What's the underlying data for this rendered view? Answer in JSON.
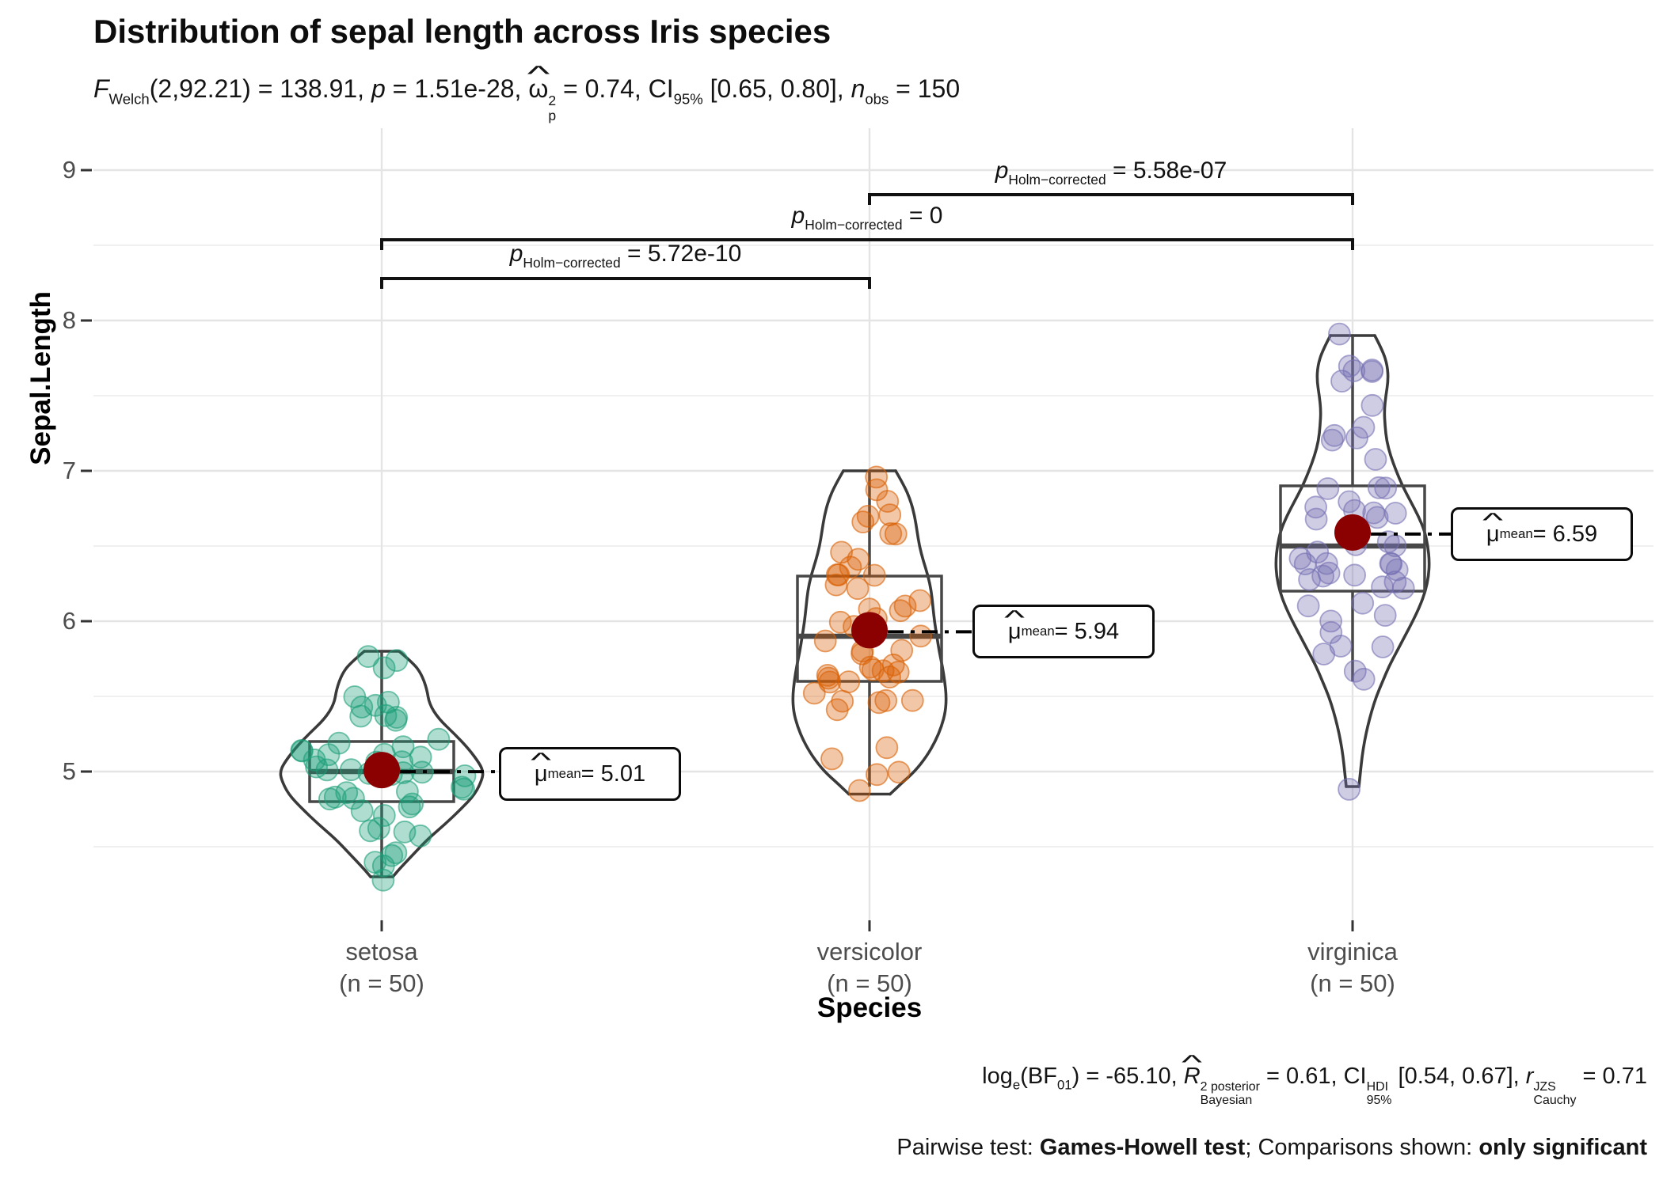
{
  "title": "Distribution of sepal length across Iris species",
  "subtitle": {
    "segments": [
      {
        "t": "F",
        "m": "i"
      },
      {
        "t": "Welch",
        "m": "sub"
      },
      {
        "t": "(2,92.21) = 138.91, ",
        "m": "n"
      },
      {
        "t": "p",
        "m": "i"
      },
      {
        "t": " = 1.51e-28, ",
        "m": "n"
      },
      {
        "t": "ω",
        "m": "hat"
      },
      {
        "t": "2|p",
        "m": "stack"
      },
      {
        "t": " = 0.74, CI",
        "m": "n"
      },
      {
        "t": "95%",
        "m": "sub"
      },
      {
        "t": " [0.65, 0.80], ",
        "m": "n"
      },
      {
        "t": "n",
        "m": "i"
      },
      {
        "t": "obs",
        "m": "sub"
      },
      {
        "t": " = 150",
        "m": "n"
      }
    ]
  },
  "caption_bayes": {
    "segments": [
      {
        "t": "log",
        "m": "n"
      },
      {
        "t": "e",
        "m": "sub"
      },
      {
        "t": "(BF",
        "m": "n"
      },
      {
        "t": "01",
        "m": "sub"
      },
      {
        "t": ") = -65.10, ",
        "m": "n"
      },
      {
        "t": "R",
        "m": "ihat"
      },
      {
        "t": "2 posterior|Bayesian",
        "m": "stack"
      },
      {
        "t": " = 0.61, CI",
        "m": "n"
      },
      {
        "t": "HDI|95%",
        "m": "stack"
      },
      {
        "t": " [0.54, 0.67], ",
        "m": "n"
      },
      {
        "t": "r",
        "m": "i"
      },
      {
        "t": "JZS|Cauchy",
        "m": "stack"
      },
      {
        "t": " = 0.71",
        "m": "n"
      }
    ]
  },
  "caption_pairwise": {
    "segments": [
      {
        "t": "Pairwise test: ",
        "m": "n"
      },
      {
        "t": "Games-Howell test",
        "m": "b"
      },
      {
        "t": "; Comparisons shown: ",
        "m": "n"
      },
      {
        "t": "only significant",
        "m": "b"
      }
    ]
  },
  "y_axis": {
    "title": "Sepal.Length"
  },
  "x_axis": {
    "title": "Species",
    "categories": [
      {
        "name": "setosa",
        "n_label": "(n = 50)"
      },
      {
        "name": "versicolor",
        "n_label": "(n = 50)"
      },
      {
        "name": "virginica",
        "n_label": "(n = 50)"
      }
    ]
  },
  "comparisons": [
    {
      "group1": "setosa",
      "group2": "versicolor",
      "p_value": "5.72e-10",
      "label_segments": [
        {
          "t": "p",
          "m": "i"
        },
        {
          "t": "Holm−corrected",
          "m": "sub"
        },
        {
          "t": " = 5.72e-10",
          "m": "n"
        }
      ]
    },
    {
      "group1": "setosa",
      "group2": "virginica",
      "p_value": "0",
      "label_segments": [
        {
          "t": "p",
          "m": "i"
        },
        {
          "t": "Holm−corrected",
          "m": "sub"
        },
        {
          "t": " = 0",
          "m": "n"
        }
      ]
    },
    {
      "group1": "versicolor",
      "group2": "virginica",
      "p_value": "5.58e-07",
      "label_segments": [
        {
          "t": "p",
          "m": "i"
        },
        {
          "t": "Holm−corrected",
          "m": "sub"
        },
        {
          "t": " = 5.58e-07",
          "m": "n"
        }
      ]
    }
  ],
  "chart_data": {
    "type": "violin",
    "title": "Distribution of sepal length across Iris species",
    "xlabel": "Species",
    "ylabel": "Sepal.Length",
    "yticks": [
      "9",
      "8",
      "7",
      "6",
      "5"
    ],
    "ytick_values": [
      9,
      8,
      7,
      6,
      5
    ],
    "minor_tick_values": [
      8.5,
      7.5,
      6.5,
      5.5,
      4.5
    ],
    "mean_color": "#8B0000",
    "grid": true,
    "anova_stats": {
      "F_Welch": "138.91",
      "df": "2,92.21",
      "p": "1.51e-28",
      "omega2_p": "0.74",
      "CI95": "[0.65, 0.80]",
      "n_obs": "150"
    },
    "bayes_stats": {
      "loge_BF01": "-65.10",
      "R2_Bayesian_posterior": "0.61",
      "CI95_HDI": "[0.54, 0.67]",
      "r_Cauchy_JZS": "0.71"
    },
    "groups": [
      {
        "name": "setosa",
        "n": 50,
        "color": "#1B9E77",
        "mean": 5.01,
        "mean_label_segments": [
          {
            "t": "μ",
            "m": "hat"
          },
          {
            "t": "mean",
            "m": "sub"
          },
          {
            "t": " = 5.01",
            "m": "n"
          }
        ],
        "box": {
          "q1": 4.8,
          "median": 5.0,
          "q3": 5.2,
          "whisker_low": 4.3,
          "whisker_high": 5.8
        },
        "values": [
          5.1,
          4.9,
          4.7,
          4.6,
          5.0,
          5.4,
          4.6,
          5.0,
          4.4,
          4.9,
          5.4,
          4.8,
          4.8,
          4.3,
          5.8,
          5.7,
          5.4,
          5.1,
          5.7,
          5.1,
          5.4,
          5.1,
          4.6,
          5.1,
          4.8,
          5.0,
          5.0,
          5.2,
          5.2,
          4.7,
          4.8,
          5.4,
          5.2,
          5.5,
          4.9,
          5.0,
          5.5,
          4.9,
          4.4,
          5.1,
          5.0,
          4.5,
          4.4,
          5.0,
          5.1,
          4.8,
          5.1,
          4.6,
          5.3,
          5.0
        ],
        "violin_profile": [
          [
            5.8,
            22
          ],
          [
            5.72,
            40
          ],
          [
            5.65,
            50
          ],
          [
            5.55,
            57
          ],
          [
            5.45,
            60
          ],
          [
            5.35,
            72
          ],
          [
            5.25,
            92
          ],
          [
            5.15,
            110
          ],
          [
            5.05,
            124
          ],
          [
            5.0,
            128
          ],
          [
            4.95,
            127
          ],
          [
            4.85,
            118
          ],
          [
            4.75,
            100
          ],
          [
            4.65,
            80
          ],
          [
            4.55,
            58
          ],
          [
            4.45,
            40
          ],
          [
            4.35,
            22
          ],
          [
            4.3,
            14
          ]
        ]
      },
      {
        "name": "versicolor",
        "n": 50,
        "color": "#D95F02",
        "mean": 5.94,
        "mean_label_segments": [
          {
            "t": "μ",
            "m": "hat"
          },
          {
            "t": "mean",
            "m": "sub"
          },
          {
            "t": " = 5.94",
            "m": "n"
          }
        ],
        "box": {
          "q1": 5.6,
          "median": 5.9,
          "q3": 6.3,
          "whisker_low": 4.9,
          "whisker_high": 7.0
        },
        "values": [
          7.0,
          6.4,
          6.9,
          5.5,
          6.5,
          5.7,
          6.3,
          4.9,
          6.6,
          5.2,
          5.0,
          5.9,
          6.0,
          6.1,
          5.6,
          6.7,
          5.6,
          5.8,
          6.2,
          5.6,
          5.9,
          6.1,
          6.3,
          6.1,
          6.4,
          6.6,
          6.8,
          6.7,
          6.0,
          5.7,
          5.5,
          5.5,
          5.8,
          6.0,
          5.4,
          6.0,
          6.7,
          6.3,
          5.6,
          5.5,
          5.5,
          6.1,
          5.8,
          5.0,
          5.6,
          5.7,
          5.7,
          6.2,
          5.1,
          5.7
        ],
        "violin_profile": [
          [
            7.0,
            33
          ],
          [
            6.9,
            44
          ],
          [
            6.8,
            52
          ],
          [
            6.7,
            57
          ],
          [
            6.6,
            60
          ],
          [
            6.5,
            63
          ],
          [
            6.4,
            68
          ],
          [
            6.3,
            74
          ],
          [
            6.2,
            78
          ],
          [
            6.1,
            80
          ],
          [
            6.0,
            82
          ],
          [
            5.9,
            85
          ],
          [
            5.8,
            88
          ],
          [
            5.7,
            92
          ],
          [
            5.6,
            95
          ],
          [
            5.5,
            97
          ],
          [
            5.4,
            96
          ],
          [
            5.3,
            91
          ],
          [
            5.2,
            83
          ],
          [
            5.1,
            72
          ],
          [
            5.0,
            57
          ],
          [
            4.92,
            40
          ],
          [
            4.85,
            26
          ]
        ]
      },
      {
        "name": "virginica",
        "n": 50,
        "color": "#7570B3",
        "mean": 6.59,
        "mean_label_segments": [
          {
            "t": "μ",
            "m": "hat"
          },
          {
            "t": "mean",
            "m": "sub"
          },
          {
            "t": " = 6.59",
            "m": "n"
          }
        ],
        "box": {
          "q1": 6.2,
          "median": 6.5,
          "q3": 6.9,
          "whisker_low": 5.6,
          "whisker_high": 7.9
        },
        "values": [
          6.3,
          5.8,
          7.1,
          6.3,
          6.5,
          7.6,
          4.9,
          7.3,
          6.7,
          7.2,
          6.5,
          6.4,
          6.8,
          5.7,
          5.8,
          6.4,
          6.5,
          7.7,
          7.7,
          6.0,
          6.9,
          5.6,
          7.7,
          6.3,
          6.7,
          7.2,
          6.2,
          6.1,
          6.4,
          7.2,
          7.4,
          7.9,
          6.4,
          6.3,
          6.1,
          7.7,
          6.3,
          6.4,
          6.0,
          6.9,
          6.7,
          6.9,
          5.8,
          6.8,
          6.7,
          6.7,
          6.3,
          6.5,
          6.2,
          5.9
        ],
        "violin_profile": [
          [
            7.9,
            28
          ],
          [
            7.8,
            38
          ],
          [
            7.7,
            44
          ],
          [
            7.6,
            45
          ],
          [
            7.5,
            42
          ],
          [
            7.4,
            40
          ],
          [
            7.3,
            41
          ],
          [
            7.2,
            43
          ],
          [
            7.1,
            48
          ],
          [
            7.0,
            55
          ],
          [
            6.9,
            63
          ],
          [
            6.8,
            73
          ],
          [
            6.7,
            83
          ],
          [
            6.6,
            91
          ],
          [
            6.5,
            95
          ],
          [
            6.4,
            97
          ],
          [
            6.3,
            96
          ],
          [
            6.2,
            92
          ],
          [
            6.1,
            85
          ],
          [
            6.0,
            76
          ],
          [
            5.9,
            66
          ],
          [
            5.8,
            56
          ],
          [
            5.7,
            46
          ],
          [
            5.6,
            38
          ],
          [
            5.5,
            30
          ],
          [
            5.4,
            24
          ],
          [
            5.3,
            19
          ],
          [
            5.2,
            15
          ],
          [
            5.1,
            12
          ],
          [
            5.0,
            10
          ],
          [
            4.9,
            8
          ]
        ]
      }
    ]
  }
}
